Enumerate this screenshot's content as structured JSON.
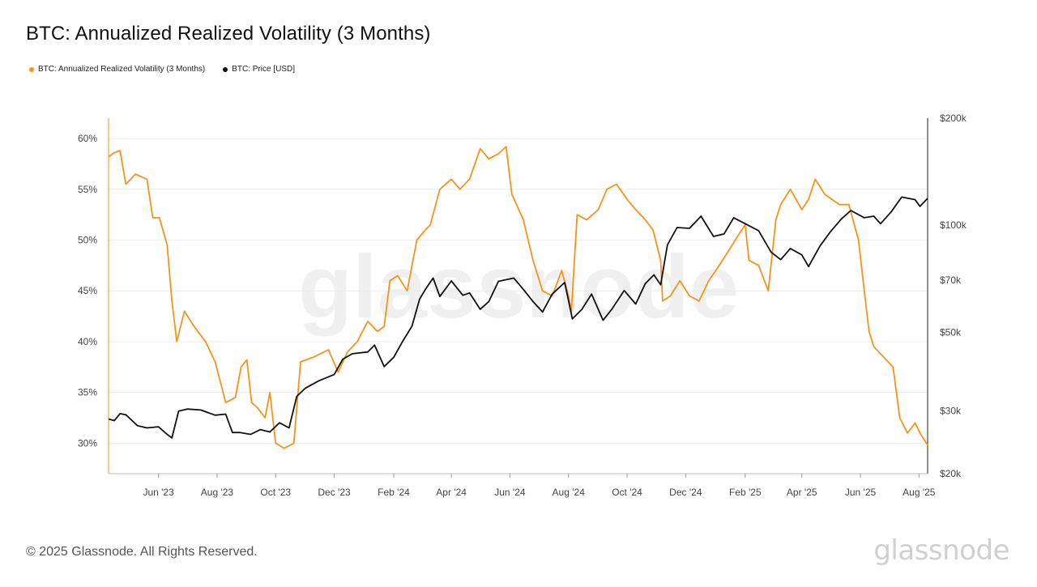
{
  "title": "BTC: Annualized Realized Volatility (3 Months)",
  "legend": [
    {
      "label": "BTC: Annualized Realized Volatility (3 Months)",
      "color": "#f7931a"
    },
    {
      "label": "BTC: Price [USD]",
      "color": "#111111"
    }
  ],
  "footer": "© 2025 Glassnode. All Rights Reserved.",
  "brand": "glassnode",
  "watermark": "glassnode",
  "chart_data": {
    "type": "line",
    "x_tick_labels": [
      "Jun '23",
      "Aug '23",
      "Oct '23",
      "Dec '23",
      "Feb '24",
      "Apr '24",
      "Jun '24",
      "Aug '24",
      "Oct '24",
      "Dec '24",
      "Feb '25",
      "Apr '25",
      "Jun '25",
      "Aug '25"
    ],
    "x_tick_dates": [
      "2023-06-01",
      "2023-08-01",
      "2023-10-01",
      "2023-12-01",
      "2024-02-01",
      "2024-04-01",
      "2024-06-01",
      "2024-08-01",
      "2024-10-01",
      "2024-12-01",
      "2025-02-01",
      "2025-04-01",
      "2025-06-01",
      "2025-08-01"
    ],
    "xlim": [
      "2023-04-10",
      "2025-08-10"
    ],
    "y_left": {
      "tick_labels": [
        "30%",
        "35%",
        "40%",
        "45%",
        "50%",
        "55%",
        "60%"
      ],
      "ticks": [
        30,
        35,
        40,
        45,
        50,
        55,
        60
      ],
      "range": [
        27,
        62
      ],
      "scale": "linear"
    },
    "y_right": {
      "tick_labels": [
        "$20k",
        "$30k",
        "$50k",
        "$70k",
        "$100k",
        "$200k"
      ],
      "ticks": [
        20000,
        30000,
        50000,
        70000,
        100000,
        200000
      ],
      "range": [
        20000,
        200000
      ],
      "scale": "log"
    },
    "grid": "horizontal",
    "legend_position": "top-left",
    "series": [
      {
        "name": "BTC: Annualized Realized Volatility (3 Months)",
        "axis": "left",
        "color": "#f7931a",
        "x": [
          "2023-04-10",
          "2023-04-16",
          "2023-04-22",
          "2023-04-28",
          "2023-05-08",
          "2023-05-20",
          "2023-05-26",
          "2023-06-02",
          "2023-06-10",
          "2023-06-15",
          "2023-06-20",
          "2023-06-28",
          "2023-07-08",
          "2023-07-20",
          "2023-07-30",
          "2023-08-10",
          "2023-08-20",
          "2023-08-26",
          "2023-09-01",
          "2023-09-06",
          "2023-09-12",
          "2023-09-20",
          "2023-09-25",
          "2023-10-01",
          "2023-10-10",
          "2023-10-16",
          "2023-10-20",
          "2023-10-27",
          "2023-11-10",
          "2023-11-25",
          "2023-12-05",
          "2023-12-15",
          "2023-12-25",
          "2024-01-05",
          "2024-01-15",
          "2024-01-22",
          "2024-01-28",
          "2024-02-05",
          "2024-02-15",
          "2024-02-25",
          "2024-03-05",
          "2024-03-10",
          "2024-03-20",
          "2024-04-01",
          "2024-04-10",
          "2024-04-20",
          "2024-05-01",
          "2024-05-10",
          "2024-05-20",
          "2024-05-28",
          "2024-06-03",
          "2024-06-15",
          "2024-06-25",
          "2024-07-05",
          "2024-07-15",
          "2024-07-25",
          "2024-08-01",
          "2024-08-04",
          "2024-08-10",
          "2024-08-20",
          "2024-09-01",
          "2024-09-10",
          "2024-09-20",
          "2024-10-01",
          "2024-10-10",
          "2024-10-20",
          "2024-10-28",
          "2024-11-05",
          "2024-11-07",
          "2024-11-15",
          "2024-11-25",
          "2024-12-05",
          "2024-12-15",
          "2024-12-25",
          "2025-01-05",
          "2025-01-15",
          "2025-01-25",
          "2025-02-01",
          "2025-02-05",
          "2025-02-15",
          "2025-02-25",
          "2025-03-05",
          "2025-03-10",
          "2025-03-20",
          "2025-04-01",
          "2025-04-08",
          "2025-04-15",
          "2025-04-25",
          "2025-05-10",
          "2025-05-20",
          "2025-05-30",
          "2025-06-05",
          "2025-06-10",
          "2025-06-15",
          "2025-06-25",
          "2025-07-05",
          "2025-07-12",
          "2025-07-20",
          "2025-07-28",
          "2025-08-02",
          "2025-08-10"
        ],
        "y": [
          58.2,
          58.6,
          58.8,
          55.5,
          56.5,
          56.0,
          52.2,
          52.2,
          49.5,
          44.0,
          40.0,
          43.0,
          41.5,
          40.0,
          38.0,
          34.0,
          34.5,
          37.5,
          38.2,
          34.0,
          33.5,
          32.5,
          35.0,
          30.0,
          29.5,
          29.8,
          30.0,
          38.0,
          38.5,
          39.2,
          37.0,
          39.0,
          40.0,
          42.0,
          41.0,
          41.5,
          46.0,
          46.5,
          45.0,
          50.0,
          51.0,
          51.5,
          55.0,
          56.0,
          55.0,
          56.0,
          59.0,
          58.0,
          58.5,
          59.2,
          54.5,
          52.0,
          48.0,
          45.0,
          44.5,
          47.0,
          44.5,
          43.0,
          52.5,
          52.0,
          53.0,
          55.0,
          55.5,
          54.0,
          53.0,
          52.0,
          51.0,
          48.0,
          44.0,
          44.5,
          46.0,
          44.5,
          44.0,
          46.0,
          47.5,
          49.0,
          50.5,
          51.5,
          48.0,
          47.5,
          45.0,
          52.0,
          53.5,
          55.0,
          53.0,
          54.0,
          56.0,
          54.5,
          53.5,
          53.5,
          50.0,
          45.0,
          41.0,
          39.5,
          38.5,
          37.5,
          32.5,
          31.0,
          32.0,
          31.0,
          29.8
        ]
      },
      {
        "name": "BTC: Price [USD]",
        "axis": "right",
        "color": "#111111",
        "x": [
          "2023-04-10",
          "2023-04-16",
          "2023-04-22",
          "2023-04-28",
          "2023-05-10",
          "2023-05-20",
          "2023-06-01",
          "2023-06-10",
          "2023-06-15",
          "2023-06-22",
          "2023-07-01",
          "2023-07-15",
          "2023-07-30",
          "2023-08-10",
          "2023-08-17",
          "2023-08-25",
          "2023-09-05",
          "2023-09-15",
          "2023-09-25",
          "2023-10-05",
          "2023-10-15",
          "2023-10-23",
          "2023-11-01",
          "2023-11-15",
          "2023-12-01",
          "2023-12-10",
          "2023-12-20",
          "2024-01-05",
          "2024-01-12",
          "2024-01-22",
          "2024-02-01",
          "2024-02-10",
          "2024-02-20",
          "2024-02-28",
          "2024-03-05",
          "2024-03-13",
          "2024-03-20",
          "2024-04-01",
          "2024-04-13",
          "2024-04-20",
          "2024-05-01",
          "2024-05-10",
          "2024-05-20",
          "2024-06-05",
          "2024-06-15",
          "2024-06-25",
          "2024-07-05",
          "2024-07-15",
          "2024-07-28",
          "2024-08-05",
          "2024-08-15",
          "2024-08-25",
          "2024-09-06",
          "2024-09-15",
          "2024-09-28",
          "2024-10-10",
          "2024-10-20",
          "2024-10-29",
          "2024-11-05",
          "2024-11-12",
          "2024-11-22",
          "2024-12-05",
          "2024-12-17",
          "2024-12-30",
          "2025-01-10",
          "2025-01-20",
          "2025-02-01",
          "2025-02-15",
          "2025-02-28",
          "2025-03-10",
          "2025-03-20",
          "2025-04-01",
          "2025-04-08",
          "2025-04-20",
          "2025-05-01",
          "2025-05-12",
          "2025-05-22",
          "2025-06-05",
          "2025-06-15",
          "2025-06-22",
          "2025-07-03",
          "2025-07-14",
          "2025-07-28",
          "2025-08-02",
          "2025-08-10"
        ],
        "y": [
          28500,
          28200,
          29500,
          29300,
          27300,
          26900,
          27100,
          25800,
          25200,
          30000,
          30400,
          30200,
          29200,
          29400,
          26100,
          26100,
          25800,
          26600,
          26200,
          27800,
          26900,
          33000,
          34800,
          36500,
          38000,
          42000,
          43500,
          44000,
          46000,
          40000,
          42500,
          47000,
          52000,
          62000,
          66000,
          71000,
          63000,
          69700,
          63500,
          64500,
          58000,
          61000,
          69500,
          71000,
          66000,
          61000,
          57000,
          64000,
          69000,
          54500,
          58000,
          64000,
          54000,
          58000,
          65500,
          60000,
          68500,
          72500,
          68000,
          88000,
          98500,
          98000,
          106000,
          93000,
          94500,
          105000,
          101000,
          96500,
          84000,
          80000,
          86000,
          82500,
          76500,
          87500,
          96000,
          104000,
          110000,
          105000,
          106000,
          101000,
          109000,
          120000,
          118000,
          113000,
          119000
        ]
      }
    ]
  }
}
